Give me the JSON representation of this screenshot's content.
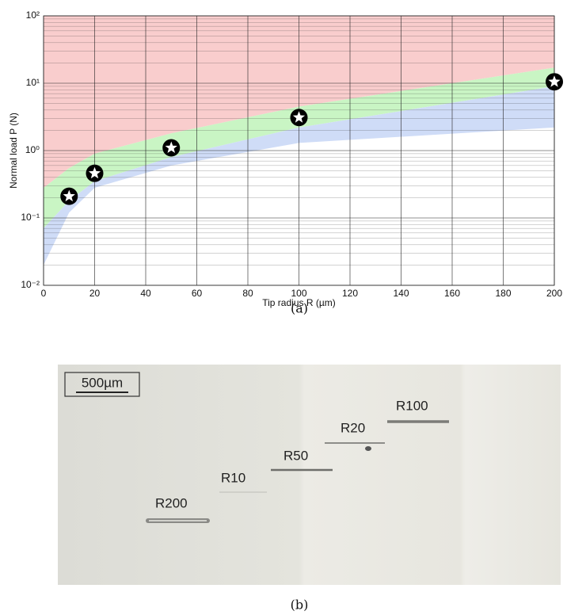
{
  "chart_data": {
    "type": "band-scatter",
    "x_label": "Tip radius R (µm)",
    "y_label": "Normal load P (N)",
    "caption": "(a)",
    "log_y": true,
    "grid": true,
    "minor_grid": true,
    "xlim": [
      0,
      200
    ],
    "ylim": [
      0.01,
      100
    ],
    "xticks": [
      0,
      20,
      40,
      60,
      80,
      100,
      120,
      140,
      160,
      180,
      200
    ],
    "yticks": [
      {
        "value": 0.01,
        "label": "10⁻²"
      },
      {
        "value": 0.1,
        "label": "10⁻¹"
      },
      {
        "value": 1,
        "label": "10⁰"
      },
      {
        "value": 10,
        "label": "10¹"
      },
      {
        "value": 100,
        "label": "10²"
      }
    ],
    "bands": {
      "x": [
        0,
        10,
        20,
        50,
        100,
        200
      ],
      "areas": [
        {
          "color": "#f9cdcd",
          "lower": [
            0.28,
            0.55,
            0.9,
            1.8,
            4.5,
            17
          ],
          "upper": [
            100,
            100,
            100,
            100,
            100,
            100
          ]
        },
        {
          "color": "#c9f5c4",
          "lower": [
            0.07,
            0.18,
            0.35,
            0.8,
            2.2,
            9
          ],
          "upper": [
            0.28,
            0.55,
            0.9,
            1.8,
            4.5,
            17
          ]
        },
        {
          "color": "#cfdcf7",
          "lower": [
            0.02,
            0.12,
            0.28,
            0.6,
            1.3,
            2.2
          ],
          "upper": [
            0.07,
            0.18,
            0.35,
            0.8,
            2.2,
            9
          ]
        }
      ]
    },
    "points": {
      "x": [
        10,
        20,
        50,
        100,
        200
      ],
      "values": [
        0.21,
        0.46,
        1.1,
        3.1,
        10.5
      ]
    }
  },
  "photo": {
    "caption": "(b)",
    "scale_bar": "500µm",
    "labels": [
      "R200",
      "R10",
      "R50",
      "R20",
      "R100"
    ]
  }
}
